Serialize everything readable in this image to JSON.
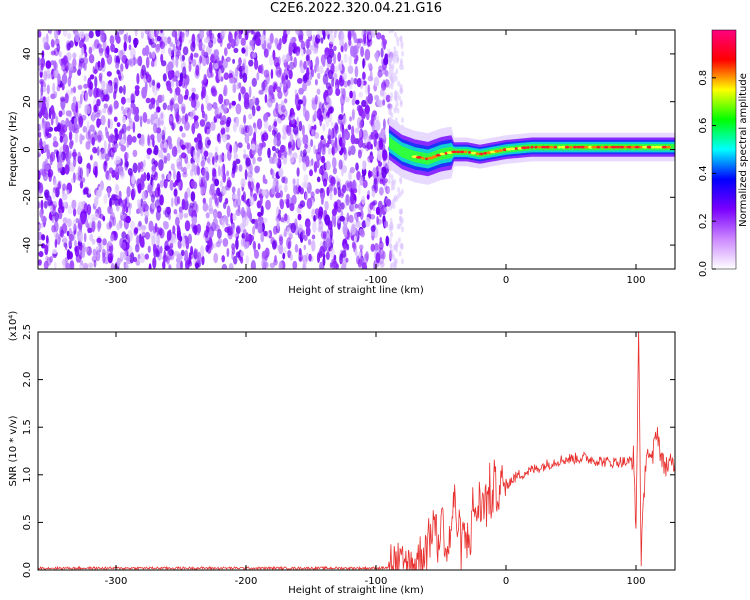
{
  "title": "C2E6.2022.320.04.21.G16",
  "chart_data": [
    {
      "type": "heatmap",
      "xlabel": "Height of straight line (km)",
      "ylabel": "Frequency (Hz)",
      "xlim": [
        -360,
        130
      ],
      "ylim": [
        -50,
        50
      ],
      "xticks": [
        -300,
        -200,
        -100,
        0,
        100
      ],
      "xtick_labels": [
        "-300",
        "-200",
        "-100",
        "0",
        "100"
      ],
      "yticks": [
        -40,
        -20,
        0,
        20,
        40
      ],
      "ytick_labels": [
        "-40",
        "-20",
        "0",
        "20",
        "40"
      ],
      "noise_region_x": [
        -360,
        -88
      ],
      "signal_band": [
        {
          "x": -90,
          "f": 3
        },
        {
          "x": -80,
          "f": -1
        },
        {
          "x": -70,
          "f": -3
        },
        {
          "x": -60,
          "f": -4
        },
        {
          "x": -50,
          "f": -2
        },
        {
          "x": -40,
          "f": -1
        },
        {
          "x": -30,
          "f": -1
        },
        {
          "x": -20,
          "f": -2
        },
        {
          "x": -10,
          "f": -1
        },
        {
          "x": 0,
          "f": 0
        },
        {
          "x": 20,
          "f": 1
        },
        {
          "x": 40,
          "f": 1
        },
        {
          "x": 60,
          "f": 1
        },
        {
          "x": 80,
          "f": 1
        },
        {
          "x": 100,
          "f": 1
        },
        {
          "x": 130,
          "f": 1
        }
      ],
      "colorbar": {
        "label": "Normalized spectral amplitude",
        "range": [
          0,
          1
        ],
        "ticks": [
          0.0,
          0.2,
          0.4,
          0.6,
          0.8
        ],
        "tick_labels": [
          "0.0",
          "0.2",
          "0.4",
          "0.6",
          "0.8"
        ],
        "colors": [
          "#ffffff",
          "#cc88ff",
          "#7a00ff",
          "#0000ff",
          "#00ffff",
          "#00ff00",
          "#ffff00",
          "#ff0000",
          "#ff0080"
        ]
      }
    },
    {
      "type": "line",
      "xlabel": "Height of straight line (km)",
      "ylabel": "SNR (10 * v/v)",
      "yscale_label": "(x10⁴)",
      "xlim": [
        -360,
        130
      ],
      "ylim": [
        0,
        2.5
      ],
      "xticks": [
        -300,
        -200,
        -100,
        0,
        100
      ],
      "xtick_labels": [
        "-300",
        "-200",
        "-100",
        "0",
        "100"
      ],
      "yticks": [
        0.0,
        0.5,
        1.0,
        1.5,
        2.0,
        2.5
      ],
      "ytick_labels": [
        "0.0",
        "0.5",
        "1.0",
        "1.5",
        "2.0",
        "2.5"
      ],
      "series": [
        {
          "color": "#e8302e",
          "x": [
            -360,
            -300,
            -200,
            -120,
            -100,
            -80,
            -70,
            -60,
            -55,
            -52,
            -50,
            -45,
            -40,
            -35,
            -30,
            -25,
            -20,
            -15,
            -10,
            -5,
            0,
            10,
            20,
            30,
            40,
            50,
            60,
            70,
            80,
            90,
            95,
            98,
            100,
            102,
            104,
            108,
            112,
            116,
            120,
            125,
            130
          ],
          "y": [
            0.02,
            0.02,
            0.02,
            0.02,
            0.02,
            0.03,
            0.08,
            0.3,
            0.55,
            0.2,
            0.6,
            0.15,
            0.7,
            0.35,
            0.3,
            0.6,
            0.65,
            0.75,
            0.8,
            0.85,
            0.9,
            1.0,
            1.05,
            1.1,
            1.15,
            1.17,
            1.18,
            1.15,
            1.13,
            1.14,
            1.12,
            1.2,
            0.4,
            2.5,
            0.15,
            1.3,
            1.1,
            1.5,
            1.12,
            1.1,
            1.1
          ]
        }
      ]
    }
  ]
}
